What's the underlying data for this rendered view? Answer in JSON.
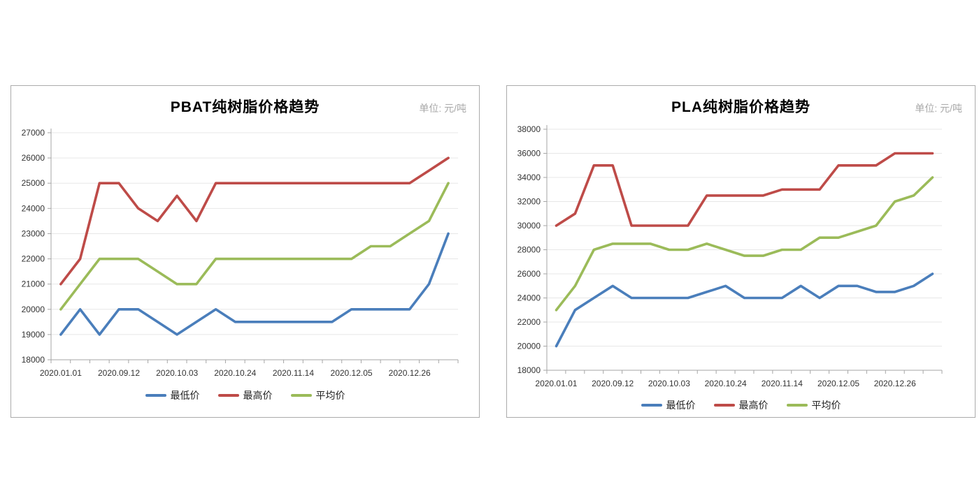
{
  "colors": {
    "min": "#4A7EBB",
    "max": "#BE4B48",
    "avg": "#9BBB59",
    "grid": "#E7E7E7",
    "axis": "#A6A6A6",
    "tick_text": "#333333",
    "title_text": "#000000",
    "unit_text": "#A9A9A9",
    "panel_border": "#ABABAB",
    "background": "#FFFFFF"
  },
  "charts": [
    {
      "title": "PBAT纯树脂价格趋势",
      "unit_label": "单位: 元/吨",
      "chart_data": {
        "type": "line",
        "n_points": 21,
        "x_tick_labels": [
          "2020.01.01",
          "2020.09.12",
          "2020.10.03",
          "2020.10.24",
          "2020.11.14",
          "2020.12.05",
          "2020.12.26"
        ],
        "x_label_indices": [
          0,
          3,
          6,
          9,
          12,
          15,
          18
        ],
        "ylim": [
          18000,
          27000
        ],
        "ytick_step": 1000,
        "grid": true,
        "legend_position": "bottom",
        "series": [
          {
            "name": "最低价",
            "color_key": "min",
            "values": [
              19000,
              20000,
              19000,
              20000,
              20000,
              19500,
              19000,
              19500,
              20000,
              19500,
              19500,
              19500,
              19500,
              19500,
              19500,
              20000,
              20000,
              20000,
              20000,
              21000,
              23000
            ]
          },
          {
            "name": "最高价",
            "color_key": "max",
            "values": [
              21000,
              22000,
              25000,
              25000,
              24000,
              23500,
              24500,
              23500,
              25000,
              25000,
              25000,
              25000,
              25000,
              25000,
              25000,
              25000,
              25000,
              25000,
              25000,
              25500,
              26000
            ]
          },
          {
            "name": "平均价",
            "color_key": "avg",
            "values": [
              20000,
              21000,
              22000,
              22000,
              22000,
              21500,
              21000,
              21000,
              22000,
              22000,
              22000,
              22000,
              22000,
              22000,
              22000,
              22000,
              22500,
              22500,
              23000,
              23500,
              25000
            ]
          }
        ]
      }
    },
    {
      "title": "PLA纯树脂价格趋势",
      "unit_label": "单位: 元/吨",
      "chart_data": {
        "type": "line",
        "n_points": 21,
        "x_tick_labels": [
          "2020.01.01",
          "2020.09.12",
          "2020.10.03",
          "2020.10.24",
          "2020.11.14",
          "2020.12.05",
          "2020.12.26"
        ],
        "x_label_indices": [
          0,
          3,
          6,
          9,
          12,
          15,
          18
        ],
        "ylim": [
          18000,
          38000
        ],
        "ytick_step": 2000,
        "grid": true,
        "legend_position": "bottom",
        "series": [
          {
            "name": "最低价",
            "color_key": "min",
            "values": [
              20000,
              23000,
              24000,
              25000,
              24000,
              24000,
              24000,
              24000,
              24500,
              25000,
              24000,
              24000,
              24000,
              25000,
              24000,
              25000,
              25000,
              24500,
              24500,
              25000,
              26000
            ]
          },
          {
            "name": "最高价",
            "color_key": "max",
            "values": [
              30000,
              31000,
              35000,
              35000,
              30000,
              30000,
              30000,
              30000,
              32500,
              32500,
              32500,
              32500,
              33000,
              33000,
              33000,
              35000,
              35000,
              35000,
              36000,
              36000,
              36000
            ]
          },
          {
            "name": "平均价",
            "color_key": "avg",
            "values": [
              23000,
              25000,
              28000,
              28500,
              28500,
              28500,
              28000,
              28000,
              28500,
              28000,
              27500,
              27500,
              28000,
              28000,
              29000,
              29000,
              29500,
              30000,
              32000,
              32500,
              34000
            ]
          }
        ]
      }
    }
  ]
}
